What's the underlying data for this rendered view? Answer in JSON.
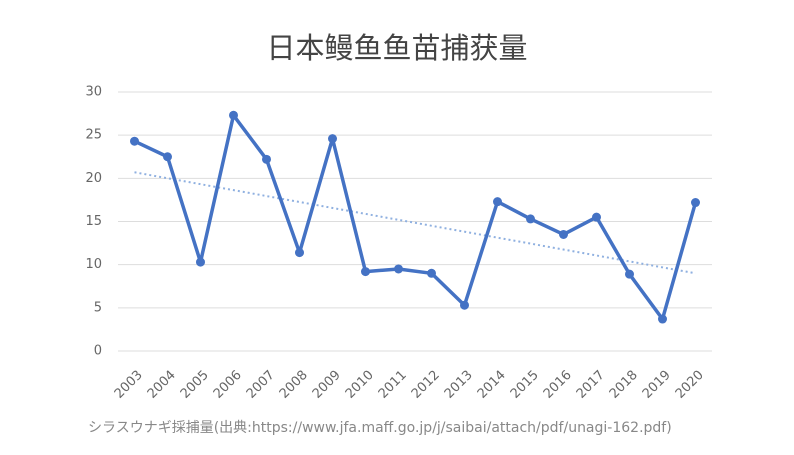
{
  "chart_data": {
    "type": "line",
    "title": "日本鳗鱼鱼苗捕获量",
    "categories": [
      "2003",
      "2004",
      "2005",
      "2006",
      "2007",
      "2008",
      "2009",
      "2010",
      "2011",
      "2012",
      "2013",
      "2014",
      "2015",
      "2016",
      "2017",
      "2018",
      "2019",
      "2020"
    ],
    "values": [
      24.3,
      22.5,
      10.3,
      27.3,
      22.2,
      11.4,
      24.6,
      9.2,
      9.5,
      9.0,
      5.3,
      17.3,
      15.3,
      13.5,
      15.5,
      8.9,
      3.7,
      17.2
    ],
    "color": "#4472c4",
    "trendline": {
      "values": [
        20.7,
        9.0
      ],
      "color": "#8fb0e0"
    },
    "ylim": [
      0,
      30
    ],
    "yticks": [
      0,
      5,
      10,
      15,
      20,
      25,
      30
    ],
    "grid": true,
    "source": "シラスウナギ採捕量(出典:https://www.jfa.maff.go.jp/j/saibai/attach/pdf/unagi-162.pdf)"
  }
}
